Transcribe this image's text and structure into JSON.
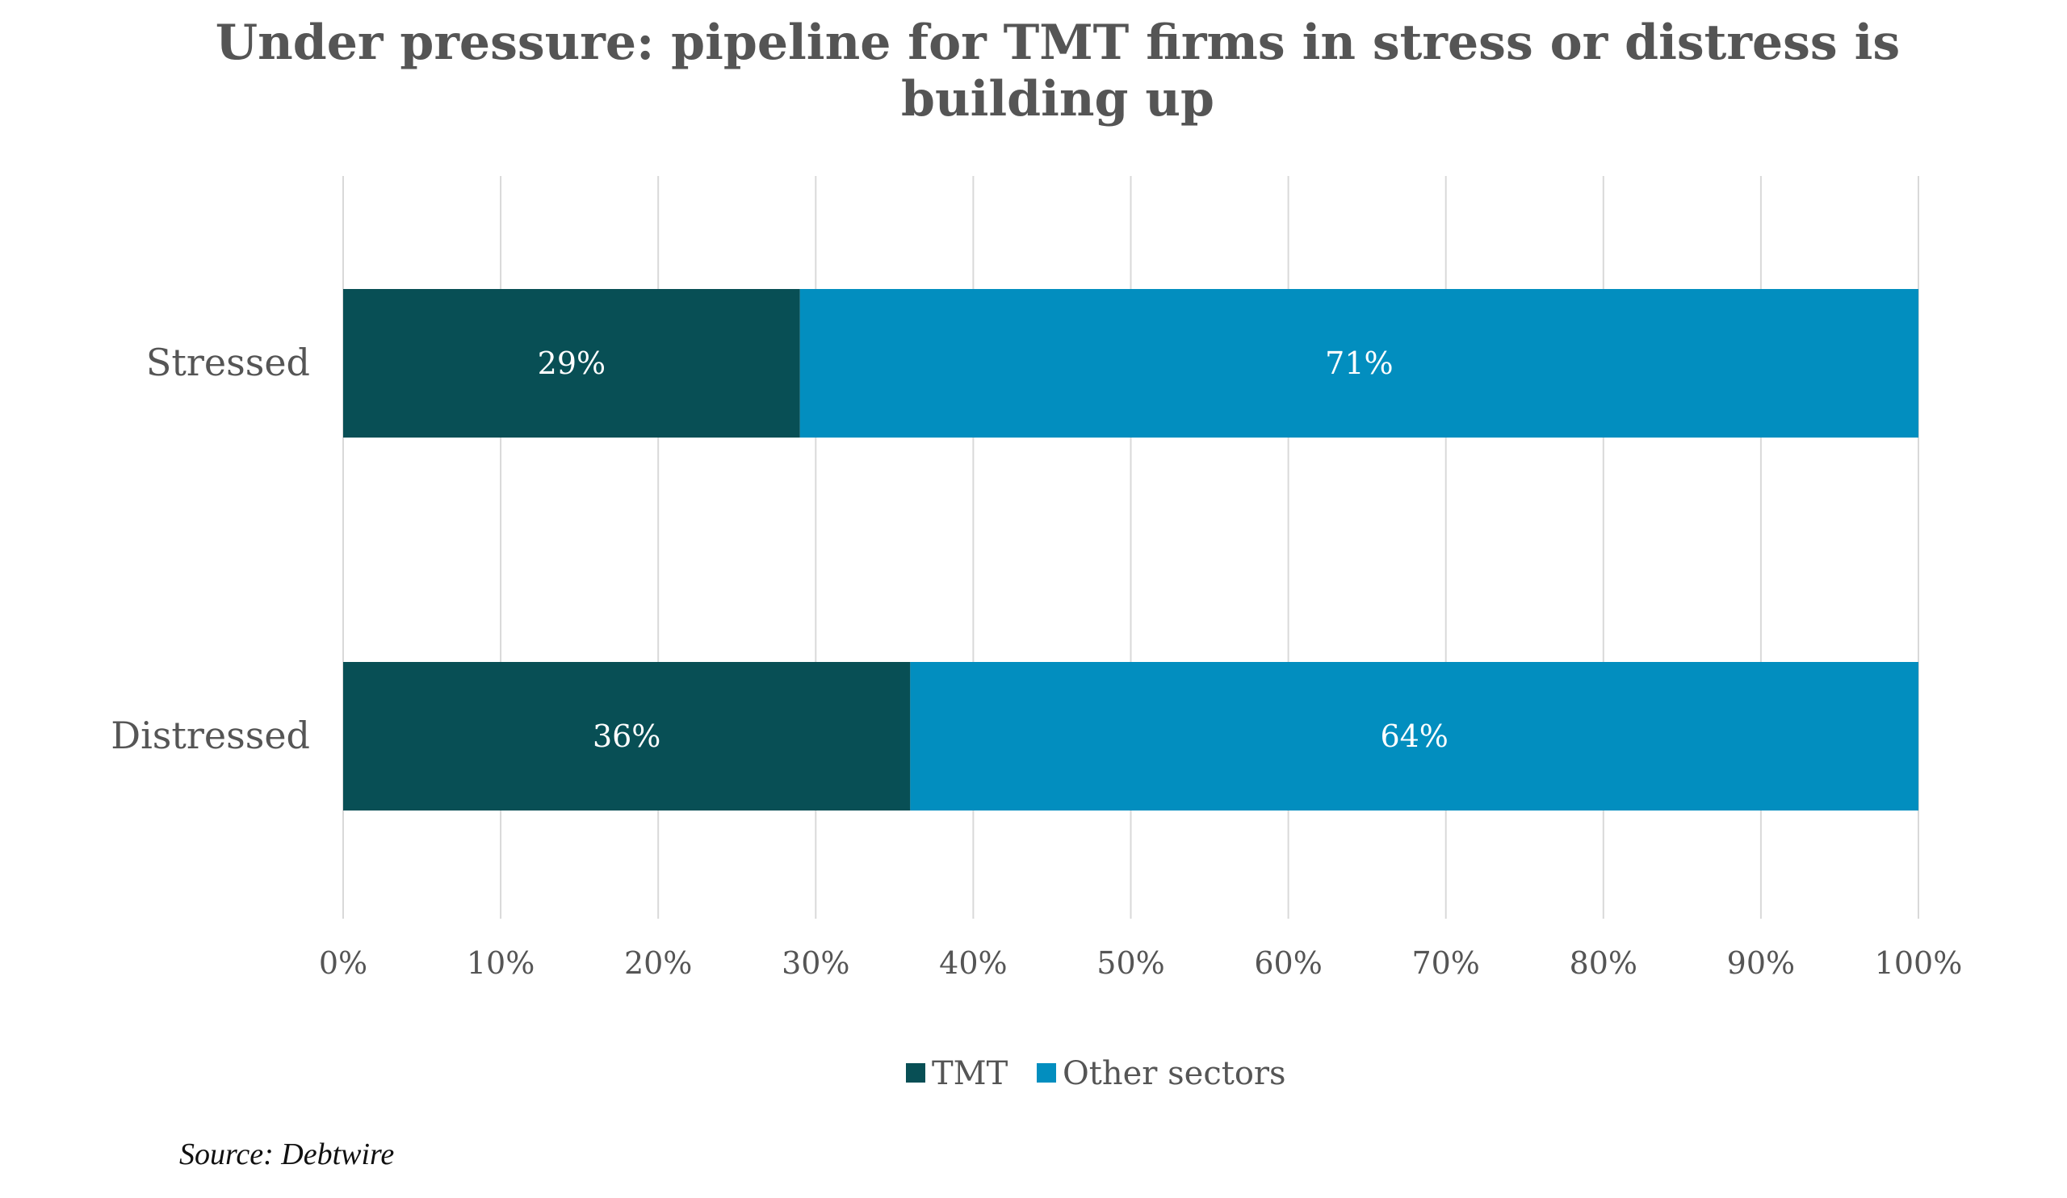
{
  "chart_data": {
    "type": "bar",
    "orientation": "horizontal",
    "stacked": true,
    "title": "Under pressure: pipeline for TMT firms in stress or distress is building up",
    "categories": [
      "Stressed",
      "Distressed"
    ],
    "series": [
      {
        "name": "TMT",
        "values": [
          29,
          36
        ],
        "labels": [
          "29%",
          "36%"
        ],
        "color": "#084f55"
      },
      {
        "name": "Other sectors",
        "values": [
          71,
          64
        ],
        "labels": [
          "71%",
          "64%"
        ],
        "color": "#028ebf"
      }
    ],
    "xlim": [
      0,
      100
    ],
    "xticks": [
      "0%",
      "10%",
      "20%",
      "30%",
      "40%",
      "50%",
      "60%",
      "70%",
      "80%",
      "90%",
      "100%"
    ],
    "grid": true,
    "legend_position": "bottom",
    "source": "Source: Debtwire"
  }
}
